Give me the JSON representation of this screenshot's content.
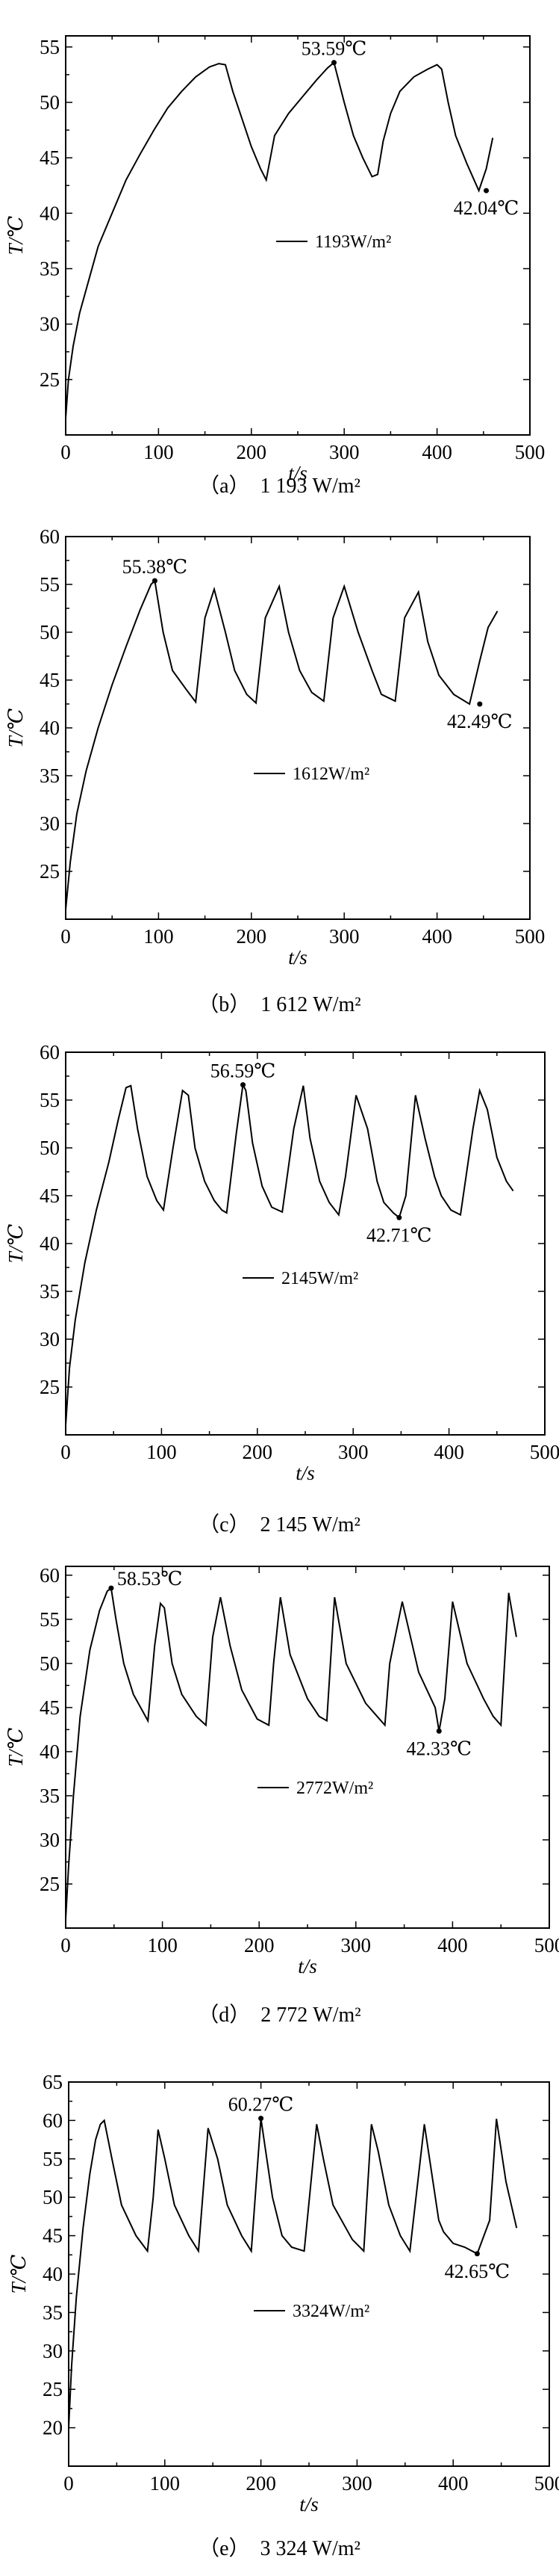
{
  "chart_data": [
    {
      "type": "line",
      "caption": "（a）  1 193 W/m²",
      "xlabel": "t/s",
      "ylabel": "T/℃",
      "xlim": [
        0,
        500
      ],
      "ylim": [
        20,
        56
      ],
      "xticks": [
        "0",
        "100",
        "200",
        "300",
        "400",
        "500"
      ],
      "yticks": [
        "25",
        "30",
        "35",
        "40",
        "45",
        "50",
        "55"
      ],
      "legend": "1193W/m²",
      "series": [
        {
          "x": [
            0,
            3,
            8,
            15,
            25,
            35,
            50,
            65,
            80,
            95,
            110,
            125,
            140,
            155,
            165,
            172,
            180,
            190,
            200,
            210,
            216,
            225,
            240,
            255,
            270,
            282,
            289,
            300,
            310,
            320,
            330,
            336,
            342,
            350,
            360,
            375,
            390,
            400,
            405,
            412,
            420,
            432,
            445,
            453,
            460
          ],
          "y": [
            21.5,
            25,
            28,
            31,
            34,
            37,
            40,
            43,
            45.3,
            47.5,
            49.5,
            51,
            52.3,
            53.2,
            53.5,
            53.4,
            51,
            48.5,
            46,
            44,
            43,
            47,
            49,
            50.5,
            52,
            53.1,
            53.59,
            50,
            47,
            45,
            43.3,
            43.5,
            46.5,
            49,
            51,
            52.3,
            53,
            53.4,
            53,
            50,
            47,
            44.5,
            42.04,
            44,
            46.8
          ]
        }
      ],
      "annotations": [
        {
          "text": "53.59℃",
          "x": 289,
          "y": 53.59,
          "pos": "above"
        },
        {
          "text": "42.04℃",
          "x": 453,
          "y": 42.04,
          "pos": "below"
        }
      ]
    },
    {
      "type": "line",
      "caption": "（b）  1 612 W/m²",
      "xlabel": "t/s",
      "ylabel": "T/℃",
      "xlim": [
        0,
        500
      ],
      "ylim": [
        20,
        60
      ],
      "xticks": [
        "0",
        "100",
        "200",
        "300",
        "400",
        "500"
      ],
      "yticks": [
        "25",
        "30",
        "35",
        "40",
        "45",
        "50",
        "55",
        "60"
      ],
      "legend": "1612W/m²",
      "series": [
        {
          "x": [
            0,
            5,
            12,
            22,
            35,
            50,
            65,
            80,
            92,
            96,
            105,
            115,
            130,
            140,
            150,
            160,
            172,
            182,
            195,
            205,
            215,
            230,
            240,
            252,
            265,
            278,
            288,
            300,
            315,
            330,
            340,
            355,
            365,
            380,
            390,
            402,
            418,
            435,
            446,
            455,
            465
          ],
          "y": [
            21,
            26,
            31,
            35.5,
            40,
            44.5,
            48.5,
            52.3,
            55,
            55.38,
            50,
            46,
            44,
            42.7,
            51.5,
            54.5,
            50,
            46,
            43.5,
            42.6,
            51.5,
            54.8,
            50,
            46,
            43.7,
            42.8,
            51.5,
            54.8,
            50,
            46,
            43.5,
            42.8,
            51.5,
            54.2,
            49,
            45.5,
            43.5,
            42.49,
            47,
            50.5,
            52.2
          ]
        }
      ],
      "annotations": [
        {
          "text": "55.38℃",
          "x": 96,
          "y": 55.38,
          "pos": "above"
        },
        {
          "text": "42.49℃",
          "x": 446,
          "y": 42.49,
          "pos": "below"
        }
      ]
    },
    {
      "type": "line",
      "caption": "（c）  2 145 W/m²",
      "xlabel": "t/s",
      "ylabel": "T/℃",
      "xlim": [
        0,
        500
      ],
      "ylim": [
        20,
        60
      ],
      "xticks": [
        "0",
        "100",
        "200",
        "300",
        "400",
        "500"
      ],
      "yticks": [
        "25",
        "30",
        "35",
        "40",
        "45",
        "50",
        "55",
        "60"
      ],
      "legend": "2145W/m²",
      "series": [
        {
          "x": [
            0,
            4,
            10,
            20,
            32,
            45,
            55,
            63,
            68,
            75,
            85,
            95,
            102,
            112,
            122,
            128,
            135,
            145,
            155,
            163,
            168,
            178,
            185,
            188,
            195,
            205,
            215,
            226,
            238,
            248,
            255,
            265,
            275,
            285,
            292,
            303,
            315,
            325,
            332,
            342,
            348,
            355,
            365,
            375,
            385,
            392,
            402,
            412,
            425,
            432,
            440,
            450,
            460,
            467
          ],
          "y": [
            21,
            27,
            32,
            38,
            43.5,
            48.5,
            53,
            56.3,
            56.5,
            52,
            47,
            44.5,
            43.5,
            50,
            56,
            55.5,
            50,
            46.5,
            44.5,
            43.5,
            43.2,
            51.5,
            56.59,
            56,
            50.5,
            46,
            43.8,
            43.3,
            52,
            56.5,
            51,
            46.5,
            44.3,
            43,
            47,
            55.5,
            52,
            46.5,
            44.3,
            43.2,
            42.71,
            45,
            55.5,
            51,
            47,
            45,
            43.5,
            43,
            52,
            56,
            54,
            49,
            46.5,
            45.5
          ]
        }
      ],
      "annotations": [
        {
          "text": "56.59℃",
          "x": 185,
          "y": 56.59,
          "pos": "above"
        },
        {
          "text": "42.71℃",
          "x": 348,
          "y": 42.71,
          "pos": "below"
        }
      ]
    },
    {
      "type": "line",
      "caption": "（d）  2 772 W/m²",
      "xlabel": "t/s",
      "ylabel": "T/℃",
      "xlim": [
        0,
        500
      ],
      "ylim": [
        20,
        61
      ],
      "xticks": [
        "0",
        "100",
        "200",
        "300",
        "400",
        "500"
      ],
      "yticks": [
        "25",
        "30",
        "35",
        "40",
        "45",
        "50",
        "55",
        "60"
      ],
      "legend": "2772W/m²",
      "series": [
        {
          "x": [
            0,
            3,
            8,
            15,
            25,
            35,
            43,
            47,
            52,
            60,
            70,
            85,
            92,
            98,
            102,
            110,
            120,
            135,
            145,
            152,
            160,
            170,
            182,
            198,
            210,
            215,
            222,
            232,
            250,
            262,
            270,
            278,
            290,
            310,
            322,
            330,
            335,
            348,
            365,
            382,
            386,
            392,
            400,
            415,
            432,
            442,
            450,
            458,
            466
          ],
          "y": [
            21,
            27,
            35,
            44,
            51.5,
            56,
            58.2,
            58.53,
            55,
            50,
            46.5,
            43.5,
            52,
            56.8,
            56.3,
            50,
            46.5,
            44,
            43,
            53,
            57.5,
            52,
            47,
            43.7,
            43,
            50,
            57.5,
            51,
            46,
            44,
            43.5,
            57.5,
            50,
            45.5,
            44,
            43,
            50,
            57,
            49,
            45,
            42.33,
            46,
            57,
            50,
            46,
            44,
            43,
            58,
            53
          ]
        }
      ],
      "annotations": [
        {
          "text": "58.53℃",
          "x": 47,
          "y": 58.53,
          "pos": "right"
        },
        {
          "text": "42.33℃",
          "x": 386,
          "y": 42.33,
          "pos": "below"
        }
      ]
    },
    {
      "type": "line",
      "caption": "（e）  3 324 W/m²",
      "xlabel": "t/s",
      "ylabel": "T/℃",
      "xlim": [
        0,
        500
      ],
      "ylim": [
        15,
        65
      ],
      "xticks": [
        "0",
        "100",
        "200",
        "300",
        "400",
        "500"
      ],
      "yticks": [
        "20",
        "25",
        "30",
        "35",
        "40",
        "45",
        "50",
        "55",
        "60",
        "65"
      ],
      "legend": "3324W/m²",
      "series": [
        {
          "x": [
            0,
            3,
            8,
            15,
            22,
            28,
            33,
            37,
            45,
            55,
            70,
            82,
            88,
            93,
            100,
            110,
            125,
            135,
            145,
            155,
            165,
            180,
            190,
            200,
            205,
            212,
            222,
            232,
            245,
            258,
            265,
            275,
            295,
            307,
            315,
            322,
            333,
            345,
            355,
            370,
            385,
            390,
            400,
            412,
            425,
            438,
            445,
            455,
            466
          ],
          "y": [
            20,
            28,
            37,
            46,
            53,
            57.5,
            59.5,
            60,
            55,
            49,
            45,
            43,
            50,
            58.8,
            55,
            49,
            45,
            43,
            59,
            55,
            49,
            45,
            43,
            60.27,
            56,
            50,
            45,
            43.5,
            43,
            59.5,
            55,
            49,
            44.5,
            43,
            59.5,
            56,
            49,
            45,
            43,
            59.5,
            47,
            45.5,
            44,
            43.5,
            42.65,
            47,
            60.2,
            52,
            46
          ]
        }
      ],
      "annotations": [
        {
          "text": "60.27℃",
          "x": 200,
          "y": 60.27,
          "pos": "above"
        },
        {
          "text": "42.65℃",
          "x": 425,
          "y": 42.65,
          "pos": "below"
        }
      ]
    }
  ]
}
